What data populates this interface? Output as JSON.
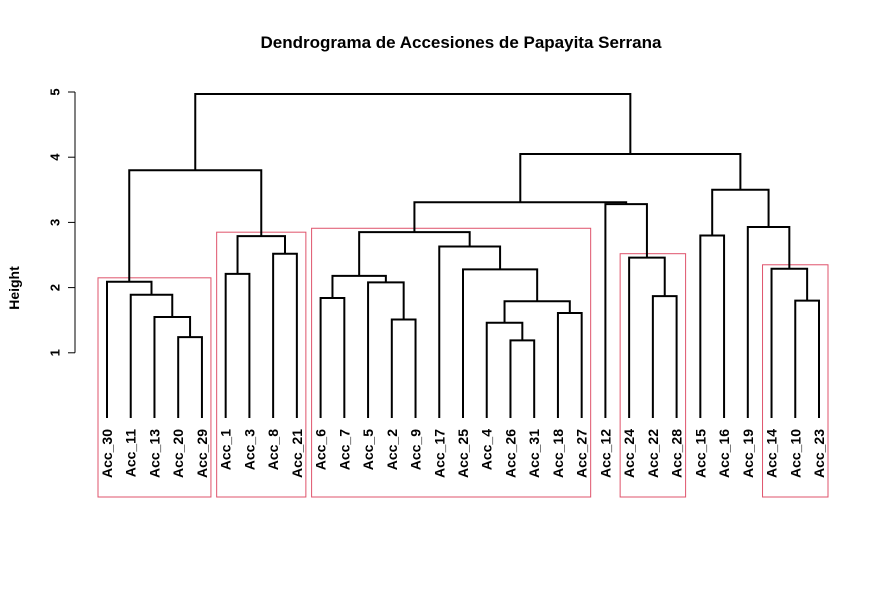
{
  "chart_data": {
    "type": "dendrogram",
    "title": "Dendrograma de Accesiones de Papayita Serrana",
    "ylabel": "Height",
    "xlabel": "",
    "ylim": [
      0,
      5
    ],
    "y_ticks": [
      1,
      2,
      3,
      4,
      5
    ],
    "leaves": [
      "Acc_30",
      "Acc_11",
      "Acc_13",
      "Acc_20",
      "Acc_29",
      "Acc_1",
      "Acc_3",
      "Acc_8",
      "Acc_21",
      "Acc_6",
      "Acc_7",
      "Acc_5",
      "Acc_2",
      "Acc_9",
      "Acc_17",
      "Acc_25",
      "Acc_4",
      "Acc_26",
      "Acc_31",
      "Acc_18",
      "Acc_27",
      "Acc_12",
      "Acc_24",
      "Acc_22",
      "Acc_28",
      "Acc_15",
      "Acc_16",
      "Acc_19",
      "Acc_14",
      "Acc_10",
      "Acc_23"
    ],
    "merges": [
      {
        "id": "m1",
        "left": "Acc_20",
        "right": "Acc_29",
        "height": 1.24
      },
      {
        "id": "m2",
        "left": "Acc_13",
        "right": "m1",
        "height": 1.55
      },
      {
        "id": "m3",
        "left": "Acc_11",
        "right": "m2",
        "height": 1.89
      },
      {
        "id": "m4",
        "left": "Acc_30",
        "right": "m3",
        "height": 2.09
      },
      {
        "id": "m5",
        "left": "Acc_1",
        "right": "Acc_3",
        "height": 2.21
      },
      {
        "id": "m6",
        "left": "Acc_8",
        "right": "Acc_21",
        "height": 2.52
      },
      {
        "id": "m7",
        "left": "m5",
        "right": "m6",
        "height": 2.79
      },
      {
        "id": "m8",
        "left": "m4",
        "right": "m7",
        "height": 3.8
      },
      {
        "id": "m9",
        "left": "Acc_6",
        "right": "Acc_7",
        "height": 1.84
      },
      {
        "id": "m10",
        "left": "Acc_2",
        "right": "Acc_9",
        "height": 1.51
      },
      {
        "id": "m11",
        "left": "Acc_5",
        "right": "m10",
        "height": 2.08
      },
      {
        "id": "m12",
        "left": "m9",
        "right": "m11",
        "height": 2.18
      },
      {
        "id": "m13",
        "left": "Acc_26",
        "right": "Acc_31",
        "height": 1.19
      },
      {
        "id": "m14",
        "left": "Acc_4",
        "right": "m13",
        "height": 1.46
      },
      {
        "id": "m15",
        "left": "Acc_18",
        "right": "Acc_27",
        "height": 1.61
      },
      {
        "id": "m16",
        "left": "m14",
        "right": "m15",
        "height": 1.79
      },
      {
        "id": "m17",
        "left": "Acc_25",
        "right": "m16",
        "height": 2.28
      },
      {
        "id": "m18",
        "left": "Acc_17",
        "right": "m17",
        "height": 2.63
      },
      {
        "id": "m19",
        "left": "m12",
        "right": "m18",
        "height": 2.85
      },
      {
        "id": "m20",
        "left": "Acc_22",
        "right": "Acc_28",
        "height": 1.87
      },
      {
        "id": "m21",
        "left": "Acc_24",
        "right": "m20",
        "height": 2.46
      },
      {
        "id": "m22",
        "left": "Acc_12",
        "right": "m21",
        "height": 3.28
      },
      {
        "id": "m23",
        "left": "m19",
        "right": "m22",
        "height": 3.31
      },
      {
        "id": "m24",
        "left": "Acc_15",
        "right": "Acc_16",
        "height": 2.8
      },
      {
        "id": "m25",
        "left": "Acc_10",
        "right": "Acc_23",
        "height": 1.8
      },
      {
        "id": "m26",
        "left": "Acc_14",
        "right": "m25",
        "height": 2.29
      },
      {
        "id": "m27",
        "left": "Acc_19",
        "right": "m26",
        "height": 2.93
      },
      {
        "id": "m28",
        "left": "m24",
        "right": "m27",
        "height": 3.5
      },
      {
        "id": "m29",
        "left": "m23",
        "right": "m28",
        "height": 4.05
      },
      {
        "id": "m30",
        "left": "m8",
        "right": "m29",
        "height": 4.97
      }
    ],
    "cluster_boxes": [
      {
        "from": "Acc_30",
        "to": "Acc_29",
        "height": 2.15
      },
      {
        "from": "Acc_1",
        "to": "Acc_21",
        "height": 2.85
      },
      {
        "from": "Acc_6",
        "to": "Acc_27",
        "height": 2.91
      },
      {
        "from": "Acc_24",
        "to": "Acc_28",
        "height": 2.52
      },
      {
        "from": "Acc_14",
        "to": "Acc_23",
        "height": 2.35
      }
    ],
    "colors": {
      "line": "#000000",
      "cluster_box": "#df536b"
    }
  }
}
